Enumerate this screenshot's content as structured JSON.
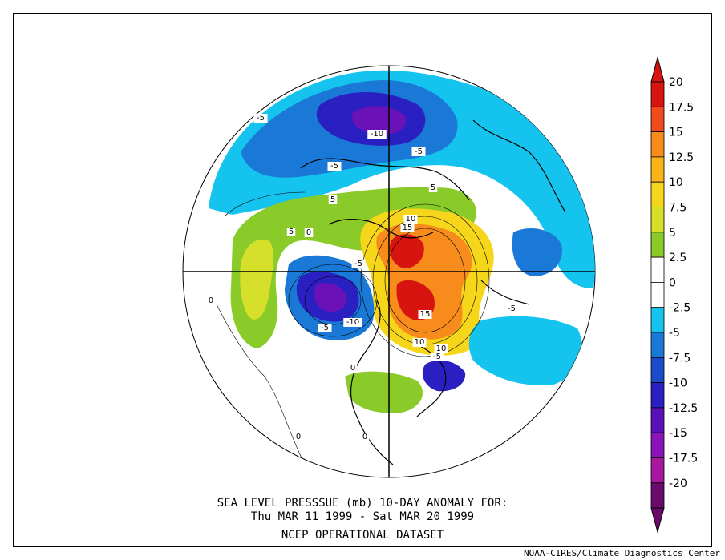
{
  "map": {
    "title_line1": "SEA LEVEL PRESSSUE (mb)   10-DAY ANOMALY FOR:",
    "title_line2": "Thu MAR 11 1999 - Sat MAR 20 1999",
    "title_line3": "NCEP OPERATIONAL DATASET",
    "credit": "NOAA-CIRES/Climate Diagnostics Center",
    "projection": "north polar stereographic",
    "contour_labels": [
      "-5",
      "-10",
      "-5",
      "-5",
      "5",
      "5",
      "5",
      "0",
      "-5",
      "10",
      "15",
      "-5",
      "-10",
      "15",
      "10",
      "10",
      "-5",
      "0",
      "-5",
      "0",
      "0",
      "0"
    ]
  },
  "colorbar": {
    "labels": [
      "20",
      "17.5",
      "15",
      "12.5",
      "10",
      "7.5",
      "5",
      "2.5",
      "0",
      "-2.5",
      "-5",
      "-7.5",
      "-10",
      "-12.5",
      "-15",
      "-17.5",
      "-20"
    ],
    "colors": [
      "#d7140f",
      "#f04a1e",
      "#f78c1d",
      "#fbb31a",
      "#f6d61a",
      "#d6e02a",
      "#8acb2a",
      "#ffffff",
      "#ffffff",
      "#14c3ee",
      "#1a79d6",
      "#1a4cc8",
      "#2a1fc0",
      "#5a12b8",
      "#8a14b8",
      "#a8189e",
      "#6a0a6a"
    ]
  },
  "colors": {
    "pos_strong": "#d7140f",
    "pos_mid": "#f78c1d",
    "pos_weak": "#fbb31a",
    "pos_low": "#8acb2a",
    "neg_low": "#14c3ee",
    "neg_mid": "#1a79d6",
    "neg_strong": "#2a1fc0",
    "neg_extreme": "#6a12b8"
  }
}
